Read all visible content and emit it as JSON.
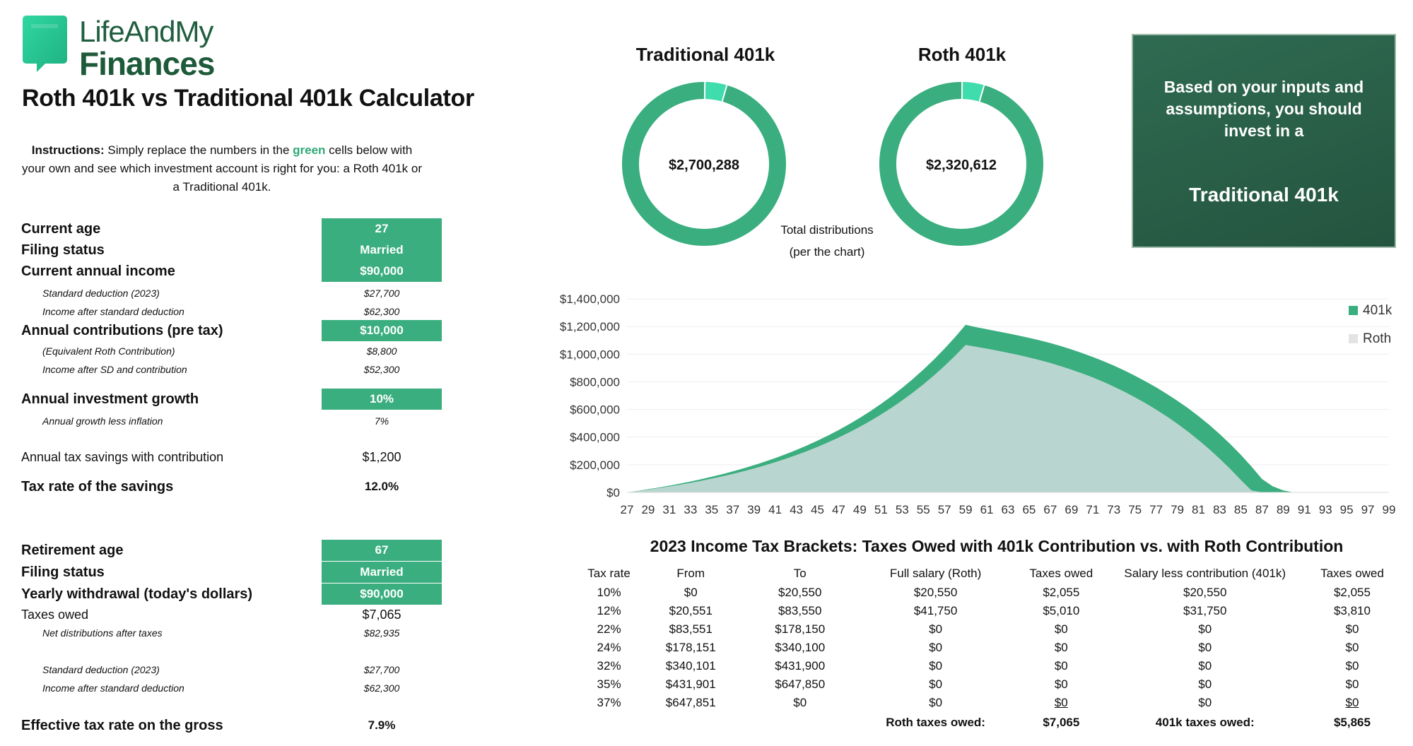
{
  "brand": {
    "line1": "LifeAndMy",
    "line2": "Finances",
    "color": "#1f5e3e",
    "accent": "#2fc58f"
  },
  "page_title": "Roth 401k vs Traditional 401k Calculator",
  "instructions": {
    "prefix": "Instructions:",
    "text_a": " Simply replace the numbers in the ",
    "highlight": "green",
    "text_b": " cells below with your own and see which investment account is right for you: a Roth 401k or a Traditional 401k."
  },
  "inputs": {
    "current_age": {
      "label": "Current age",
      "value": "27"
    },
    "filing_status": {
      "label": "Filing status",
      "value": "Married"
    },
    "current_income": {
      "label": "Current annual income",
      "value": "$90,000"
    },
    "std_deduction": {
      "label": "Standard deduction (2023)",
      "value": "$27,700"
    },
    "income_after_sd": {
      "label": "Income after standard deduction",
      "value": "$62,300"
    },
    "contributions": {
      "label": "Annual contributions (pre tax)",
      "value": "$10,000"
    },
    "equiv_roth": {
      "label": "(Equivalent Roth Contribution)",
      "value": "$8,800"
    },
    "income_after_sd_contrib": {
      "label": "Income after SD and contribution",
      "value": "$52,300"
    },
    "growth": {
      "label": "Annual investment growth",
      "value": "10%"
    },
    "growth_less_inflation": {
      "label": "Annual growth less inflation",
      "value": "7%"
    },
    "tax_savings": {
      "label": "Annual tax savings with contribution",
      "value": "$1,200"
    },
    "tax_rate_savings": {
      "label": "Tax rate of the savings",
      "value": "12.0%"
    }
  },
  "retirement": {
    "retirement_age": {
      "label": "Retirement age",
      "value": "67"
    },
    "filing_status": {
      "label": "Filing status",
      "value": "Married"
    },
    "withdrawal": {
      "label": "Yearly withdrawal (today's dollars)",
      "value": "$90,000"
    },
    "taxes_owed": {
      "label": "Taxes owed",
      "value": "$7,065"
    },
    "net_distributions": {
      "label": "Net distributions after taxes",
      "value": "$82,935"
    },
    "std_deduction": {
      "label": "Standard deduction (2023)",
      "value": "$27,700"
    },
    "income_after_sd": {
      "label": "Income after standard deduction",
      "value": "$62,300"
    },
    "effective_rate": {
      "label": "Effective tax rate on the gross",
      "value": "7.9%"
    }
  },
  "donuts": [
    {
      "title": "Traditional 401k",
      "total": "$2,700,288",
      "highlight_fraction": 0.045
    },
    {
      "title": "Roth 401k",
      "total": "$2,320,612",
      "highlight_fraction": 0.045
    }
  ],
  "donut_note": {
    "line1": "Total distributions",
    "line2": "(per the chart)"
  },
  "recommendation": {
    "text": "Based on your inputs and assumptions, you should invest in a",
    "answer": "Traditional 401k"
  },
  "colors": {
    "accent": "#3aae7e",
    "donut_main": "#3aae7e",
    "donut_highlight": "#3fdcae",
    "roth_area": "#b9d5d0",
    "box_bg": "#2a6049"
  },
  "chart_data": {
    "type": "area",
    "x": [
      27,
      28,
      29,
      30,
      31,
      32,
      33,
      34,
      35,
      36,
      37,
      38,
      39,
      40,
      41,
      42,
      43,
      44,
      45,
      46,
      47,
      48,
      49,
      50,
      51,
      52,
      53,
      54,
      55,
      56,
      57,
      58,
      59,
      60,
      61,
      62,
      63,
      64,
      65,
      66,
      67,
      68,
      69,
      70,
      71,
      72,
      73,
      74,
      75,
      76,
      77,
      78,
      79,
      80,
      81,
      82,
      83,
      84,
      85,
      86,
      87,
      88,
      89,
      90,
      91,
      92,
      93,
      94,
      95,
      96,
      97,
      98,
      99
    ],
    "series": [
      {
        "name": "401k",
        "values": [
          0,
          11000,
          22770,
          35364,
          48840,
          63258,
          78686,
          95194,
          112858,
          131758,
          151981,
          173620,
          196773,
          221547,
          248055,
          276419,
          306768,
          339242,
          373989,
          411168,
          450950,
          493516,
          539062,
          587796,
          639942,
          695738,
          755440,
          819321,
          887673,
          960810,
          1039066,
          1122800,
          1212396,
          1195000,
          1180000,
          1165000,
          1150000,
          1134000,
          1118000,
          1100000,
          1080000,
          1058000,
          1034000,
          1008000,
          980000,
          950000,
          917000,
          882000,
          844000,
          803000,
          760000,
          713000,
          663000,
          610000,
          552000,
          490000,
          422000,
          350000,
          272000,
          188000,
          97000,
          45000,
          15000,
          0,
          0,
          0,
          0,
          0,
          0,
          0,
          0,
          0,
          0
        ]
      },
      {
        "name": "Roth",
        "values": [
          0,
          9680,
          20038,
          31121,
          42980,
          55668,
          69245,
          83772,
          99316,
          115948,
          133744,
          152786,
          173161,
          194963,
          218291,
          243251,
          269960,
          298537,
          329115,
          361833,
          396841,
          434300,
          474381,
          517267,
          563155,
          612256,
          664794,
          721010,
          781160,
          845522,
          914389,
          988076,
          1066922,
          1053000,
          1040000,
          1025000,
          1010000,
          994000,
          976000,
          957000,
          936000,
          913000,
          888000,
          861000,
          832000,
          800000,
          765000,
          728000,
          688000,
          645000,
          599000,
          550000,
          497000,
          440000,
          379000,
          314000,
          244000,
          170000,
          90000,
          15000,
          0,
          0,
          0,
          0,
          0,
          0,
          0,
          0,
          0,
          0,
          0,
          0,
          0
        ]
      }
    ],
    "ylim": [
      0,
      1400000
    ],
    "yticks": [
      "$0",
      "$200,000",
      "$400,000",
      "$600,000",
      "$800,000",
      "$1,000,000",
      "$1,200,000",
      "$1,400,000"
    ],
    "xticks": [
      "27",
      "29",
      "31",
      "33",
      "35",
      "37",
      "39",
      "41",
      "43",
      "45",
      "47",
      "49",
      "51",
      "53",
      "55",
      "57",
      "59",
      "61",
      "63",
      "65",
      "67",
      "69",
      "71",
      "73",
      "75",
      "77",
      "79",
      "81",
      "83",
      "85",
      "87",
      "89",
      "91",
      "93",
      "95",
      "97",
      "99"
    ],
    "legend": [
      "401k",
      "Roth"
    ],
    "legend_position": "top-right",
    "grid": true
  },
  "tax_table": {
    "title": "2023 Income Tax Brackets: Taxes Owed with 401k Contribution vs. with Roth Contribution",
    "headers": [
      "Tax rate",
      "From",
      "To",
      "Full salary (Roth)",
      "Taxes owed",
      "Salary less contribution (401k)",
      "Taxes owed"
    ],
    "rows": [
      [
        "10%",
        "$0",
        "$20,550",
        "$20,550",
        "$2,055",
        "$20,550",
        "$2,055"
      ],
      [
        "12%",
        "$20,551",
        "$83,550",
        "$41,750",
        "$5,010",
        "$31,750",
        "$3,810"
      ],
      [
        "22%",
        "$83,551",
        "$178,150",
        "$0",
        "$0",
        "$0",
        "$0"
      ],
      [
        "24%",
        "$178,151",
        "$340,100",
        "$0",
        "$0",
        "$0",
        "$0"
      ],
      [
        "32%",
        "$340,101",
        "$431,900",
        "$0",
        "$0",
        "$0",
        "$0"
      ],
      [
        "35%",
        "$431,901",
        "$647,850",
        "$0",
        "$0",
        "$0",
        "$0"
      ],
      [
        "37%",
        "$647,851",
        "$0",
        "$0",
        "$0",
        "$0",
        "$0"
      ]
    ],
    "roth_total_label": "Roth taxes owed:",
    "roth_total": "$7,065",
    "k401_total_label": "401k taxes owed:",
    "k401_total": "$5,865"
  }
}
